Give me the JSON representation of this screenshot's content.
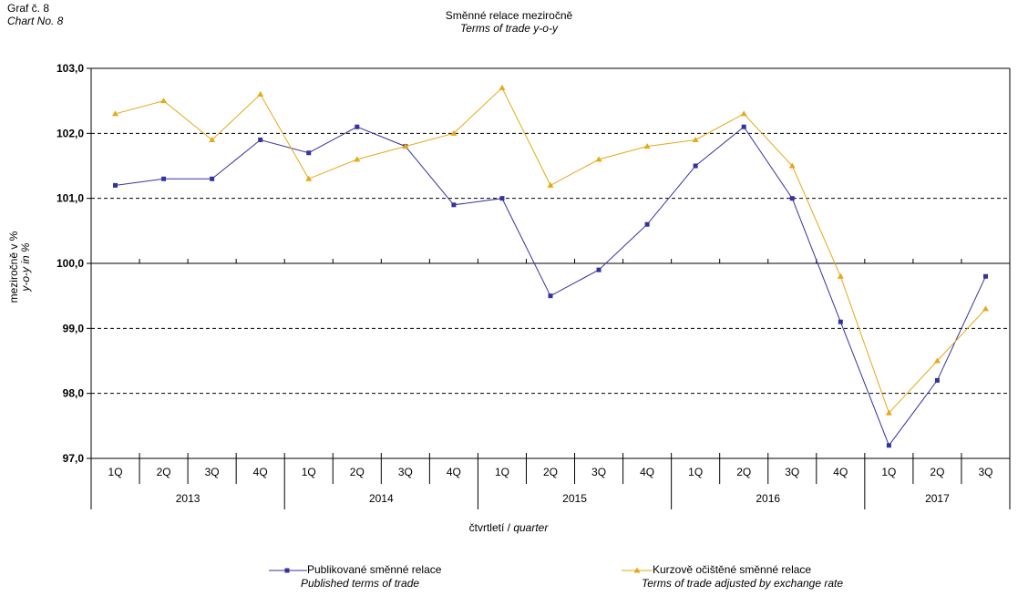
{
  "chart_no": {
    "cz": "Graf č. 8",
    "en": "Chart No. 8"
  },
  "chart_data": {
    "type": "line",
    "title": "Směnné relace meziročně",
    "subtitle": "Terms of trade y-o-y",
    "ylabel": "meziročně v %",
    "ylabel_en": "y-o-y in %",
    "xlabel": "čtvrtletí",
    "xlabel_en": "quarter",
    "ylim": [
      97.0,
      103.0
    ],
    "y_ticks": [
      "97,0",
      "98,0",
      "99,0",
      "100,0",
      "101,0",
      "102,0",
      "103,0"
    ],
    "categories": [
      "1Q",
      "2Q",
      "3Q",
      "4Q",
      "1Q",
      "2Q",
      "3Q",
      "4Q",
      "1Q",
      "2Q",
      "3Q",
      "4Q",
      "1Q",
      "2Q",
      "3Q",
      "4Q",
      "1Q",
      "2Q",
      "3Q"
    ],
    "years": [
      "2013",
      "2014",
      "2015",
      "2016",
      "2017"
    ],
    "grid": "dashed horizontal",
    "legend_position": "bottom",
    "series": [
      {
        "name": "Publikované směnné relace",
        "name_en": "Published terms of trade",
        "color": "#3333a0",
        "marker": "square",
        "values": [
          101.2,
          101.3,
          101.3,
          101.9,
          101.7,
          102.1,
          101.8,
          100.9,
          101.0,
          99.5,
          99.9,
          100.6,
          101.5,
          102.1,
          101.0,
          99.1,
          97.2,
          98.2,
          99.8
        ]
      },
      {
        "name": "Kurzově očištěné směnné relace",
        "name_en": "Terms of trade adjusted by exchange rate",
        "color": "#e6a817",
        "marker": "triangle",
        "values": [
          102.3,
          102.5,
          101.9,
          102.6,
          101.3,
          101.6,
          101.8,
          102.0,
          102.7,
          101.2,
          101.6,
          101.8,
          101.9,
          102.3,
          101.5,
          99.8,
          97.7,
          98.5,
          99.3
        ]
      }
    ]
  }
}
